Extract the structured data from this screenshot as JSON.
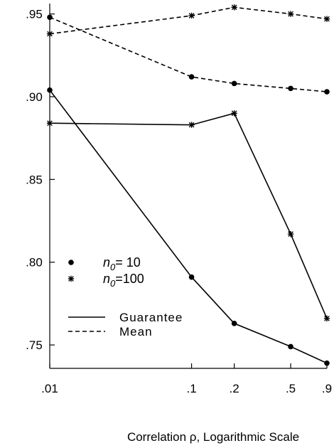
{
  "chart_data": {
    "type": "line",
    "title": "",
    "xlabel": "Correlation ρ, Logarithmic Scale",
    "ylabel": "",
    "x_scale": "log",
    "x": [
      0.01,
      0.1,
      0.2,
      0.5,
      0.9
    ],
    "x_tick_labels": [
      ".01",
      ".1",
      ".2",
      ".5",
      ".9"
    ],
    "y_ticks": [
      0.75,
      0.8,
      0.85,
      0.9,
      0.95
    ],
    "y_tick_labels": [
      ".75",
      ".80",
      ".85",
      ".90",
      ".95"
    ],
    "ylim": [
      0.735,
      0.955
    ],
    "grid": false,
    "legend_position": "lower-left",
    "legend": {
      "markers": [
        {
          "symbol": "dot",
          "label_prefix": "n",
          "label_sub": "0",
          "label_value": "= 10"
        },
        {
          "symbol": "star",
          "label_prefix": "n",
          "label_sub": "0",
          "label_value": "=100"
        }
      ],
      "lines": [
        {
          "style": "solid",
          "label": "Guarantee"
        },
        {
          "style": "dashed",
          "label": "Mean"
        }
      ]
    },
    "series": [
      {
        "marker": "dot",
        "style": "dashed",
        "values": [
          0.948,
          0.912,
          0.908,
          0.905,
          0.903
        ]
      },
      {
        "marker": "star",
        "style": "dashed",
        "values": [
          0.938,
          0.949,
          0.954,
          0.95,
          0.947
        ]
      },
      {
        "marker": "dot",
        "style": "solid",
        "values": [
          0.904,
          0.791,
          0.763,
          0.749,
          0.739
        ]
      },
      {
        "marker": "star",
        "style": "solid",
        "values": [
          0.884,
          0.883,
          0.89,
          0.817,
          0.766
        ]
      }
    ]
  }
}
